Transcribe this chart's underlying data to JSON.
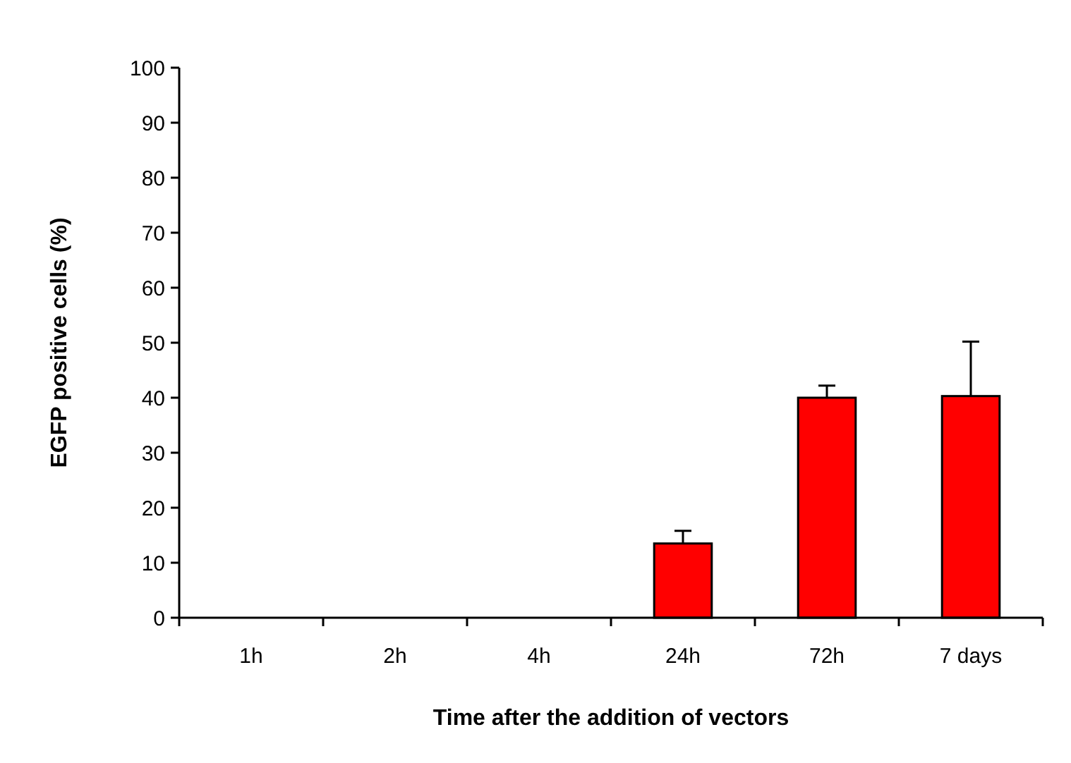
{
  "chart_data": {
    "type": "bar",
    "xlabel": "Time after the addition of vectors",
    "ylabel": "EGFP positive cells (%)",
    "categories": [
      "1h",
      "2h",
      "4h",
      "24h",
      "72h",
      "7 days"
    ],
    "values": [
      0,
      0,
      0,
      13.5,
      40,
      40.3
    ],
    "errors": [
      null,
      null,
      null,
      [
        13.5,
        15.8
      ],
      [
        40,
        42.2
      ],
      [
        40.3,
        50.2
      ]
    ],
    "color": "#ff0000",
    "ylim": [
      0,
      100
    ],
    "yticks": [
      0,
      10,
      20,
      30,
      40,
      50,
      60,
      70,
      80,
      90,
      100
    ]
  }
}
